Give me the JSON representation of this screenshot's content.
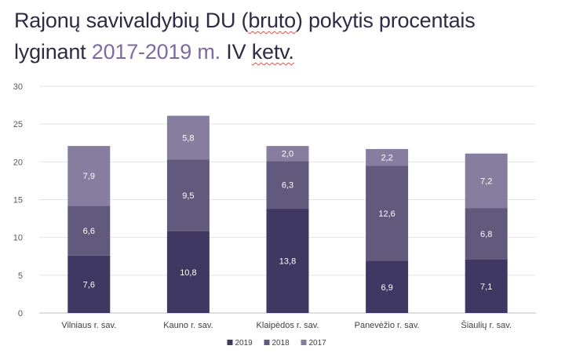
{
  "title": {
    "part1": "Rajonų savivaldybių DU (",
    "part2": "bruto",
    "part3": ") pokytis procentais",
    "part4": "lyginant ",
    "part5": "2017-2019 m.",
    "part6": " IV ",
    "part7": "ketv.",
    "accent_color": "#7d6aa3",
    "text_color": "#2f2a45"
  },
  "chart_data": {
    "type": "bar",
    "stacked": true,
    "categories": [
      "Vilniaus r. sav.",
      "Kauno r. sav.",
      "Klaipėdos r. sav.",
      "Panevėžio r. sav.",
      "Šiaulių r. sav."
    ],
    "series": [
      {
        "name": "2019",
        "values": [
          7.6,
          10.8,
          13.8,
          6.9,
          7.1
        ],
        "labels": [
          "7,6",
          "10,8",
          "13,8",
          "6,9",
          "7,1"
        ],
        "color": "#3f3862",
        "label_color": "#ffffff"
      },
      {
        "name": "2018",
        "values": [
          6.6,
          9.5,
          6.3,
          12.6,
          6.8
        ],
        "labels": [
          "6,6",
          "9,5",
          "6,3",
          "12,6",
          "6,8"
        ],
        "color": "#625a7d",
        "label_color": "#ffffff"
      },
      {
        "name": "2017",
        "values": [
          7.9,
          5.8,
          2.0,
          2.2,
          7.2
        ],
        "labels": [
          "7,9",
          "5,8",
          "2,0",
          "2,2",
          "7,2"
        ],
        "color": "#867d9f",
        "label_color": "#ffffff"
      }
    ],
    "ylim": [
      0,
      30
    ],
    "yticks": [
      "0",
      "5",
      "10",
      "15",
      "20",
      "25",
      "30"
    ],
    "grid": true,
    "legend": "bottom-center"
  }
}
